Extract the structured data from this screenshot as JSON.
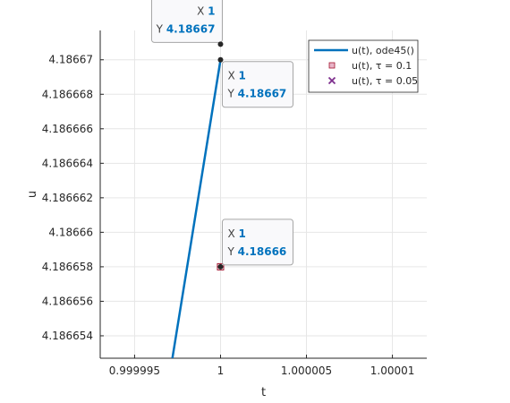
{
  "chart_data": {
    "type": "line",
    "title": "",
    "xlabel": "t",
    "ylabel": "u",
    "xlim": [
      0.999993,
      1.000012
    ],
    "ylim": [
      4.1866527,
      4.1866717
    ],
    "xticks": [
      0.999995,
      1,
      1.000005,
      1.00001
    ],
    "xtick_labels": [
      "0.999995",
      "1",
      "1.000005",
      "1.00001"
    ],
    "yticks": [
      4.186654,
      4.186656,
      4.186658,
      4.18666,
      4.186662,
      4.186664,
      4.186666,
      4.186668,
      4.18667
    ],
    "ytick_labels": [
      "4.186654",
      "4.186656",
      "4.186658",
      "4.18666",
      "4.186662",
      "4.186664",
      "4.186666",
      "4.186668",
      "4.18667"
    ],
    "grid": true,
    "legend_position": "top-right",
    "series": [
      {
        "name": "u(t), ode45()",
        "kind": "line",
        "color": "#0072bd",
        "x": [
          0.9999972,
          1.0
        ],
        "y": [
          4.1866527,
          4.18667
        ]
      },
      {
        "name": "u(t), τ = 0.1",
        "kind": "marker-square",
        "color": "#a2142f",
        "x": [
          1.0
        ],
        "y": [
          4.186658
        ]
      },
      {
        "name": "u(t), τ = 0.05",
        "kind": "marker-x",
        "color": "#7e2f8e",
        "x": [],
        "y": []
      }
    ],
    "datatips": [
      {
        "x_key": "X",
        "x_value": "1",
        "y_key": "Y",
        "y_value": "4.18667",
        "data_x": 1.0,
        "data_y": 4.1866709,
        "side": "above-left"
      },
      {
        "x_key": "X",
        "x_value": "1",
        "y_key": "Y",
        "y_value": "4.18667",
        "data_x": 1.0,
        "data_y": 4.18667,
        "side": "below-right"
      },
      {
        "x_key": "X",
        "x_value": "1",
        "y_key": "Y",
        "y_value": "4.18666",
        "data_x": 1.0,
        "data_y": 4.186658,
        "side": "above-right"
      }
    ]
  }
}
